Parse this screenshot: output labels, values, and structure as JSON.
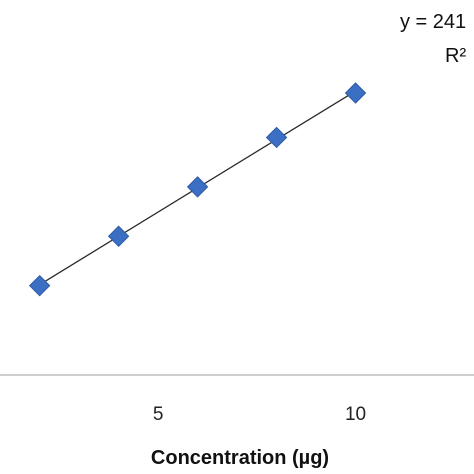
{
  "chart_data": {
    "type": "scatter",
    "title": "",
    "xlabel": "Concentration  (µg)",
    "ylabel": "",
    "xlim": [
      1.3,
      13.0
    ],
    "ylim": [
      0,
      1
    ],
    "x_ticks": [
      5,
      10
    ],
    "grid": false,
    "annotations": [
      "y = 241",
      "R²"
    ],
    "series": [
      {
        "marker": "diamond",
        "color": "#3b6fc4",
        "x": [
          2,
          4,
          6,
          8,
          10
        ],
        "y": [
          0.22,
          0.42,
          0.62,
          0.82,
          1.0
        ]
      }
    ],
    "trendline": {
      "color": "#2a2a2a",
      "type": "linear"
    }
  }
}
